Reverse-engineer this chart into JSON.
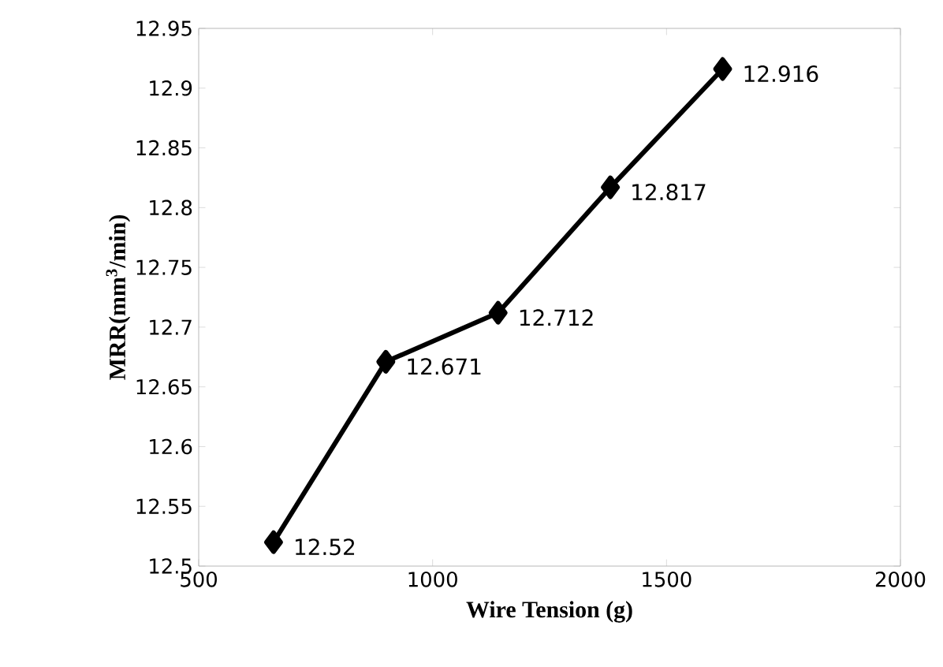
{
  "chart_data": {
    "type": "line",
    "xlabel": "Wire Tension (g)",
    "ylabel": "MRR(mm$^{3}$/min)",
    "x": [
      660,
      900,
      1140,
      1380,
      1620
    ],
    "series": [
      {
        "color": "#000000",
        "values": [
          12.52,
          12.671,
          12.712,
          12.817,
          12.916
        ]
      }
    ],
    "xlim": [
      500,
      2000
    ],
    "xticks": [
      500,
      1000,
      1500,
      2000
    ],
    "ylim": [
      12.5,
      12.95
    ],
    "yticks": [
      12.5,
      12.55,
      12.6,
      12.65,
      12.7,
      12.75,
      12.8,
      12.85,
      12.9,
      12.95
    ],
    "marker": "diamond",
    "line_style": "solid",
    "data_labels": true
  }
}
